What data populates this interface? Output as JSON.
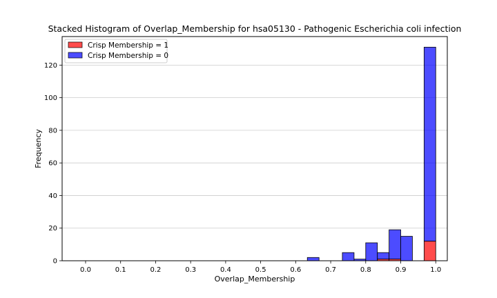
{
  "chart_data": {
    "type": "bar",
    "title": "Stacked Histogram of Overlap_Membership for hsa05130 - Pathogenic Escherichia coli infection",
    "xlabel": "Overlap_Membership",
    "ylabel": "Frequency",
    "xlim": [
      -0.067,
      1.033
    ],
    "ylim": [
      0,
      137.5
    ],
    "x_ticks": [
      0.0,
      0.1,
      0.2,
      0.3,
      0.4,
      0.5,
      0.6,
      0.7,
      0.8,
      0.9,
      1.0
    ],
    "x_tick_labels": [
      "0.0",
      "0.1",
      "0.2",
      "0.3",
      "0.4",
      "0.5",
      "0.6",
      "0.7",
      "0.8",
      "0.9",
      "1.0"
    ],
    "y_ticks": [
      0,
      20,
      40,
      60,
      80,
      100,
      120
    ],
    "y_tick_labels": [
      "0",
      "20",
      "40",
      "60",
      "80",
      "100",
      "120"
    ],
    "grid": "y",
    "legend_position": "top-left",
    "bin_edges": [
      -0.0333,
      0.0,
      0.0333,
      0.0667,
      0.1,
      0.1333,
      0.1667,
      0.2,
      0.2333,
      0.2667,
      0.3,
      0.3333,
      0.3667,
      0.4,
      0.4333,
      0.4667,
      0.5,
      0.5333,
      0.5667,
      0.6,
      0.6333,
      0.6667,
      0.7,
      0.7333,
      0.7667,
      0.8,
      0.8333,
      0.8667,
      0.9,
      0.9333,
      0.9667,
      1.0
    ],
    "series": [
      {
        "name": "Crisp Membership = 1",
        "color": "#ff0000",
        "values": [
          0,
          0,
          0,
          0,
          0,
          0,
          0,
          0,
          0,
          0,
          0,
          0,
          0,
          0,
          0,
          0,
          0,
          0,
          0,
          0,
          0,
          0,
          0,
          0,
          0,
          0,
          1,
          1,
          0,
          0,
          12
        ]
      },
      {
        "name": "Crisp Membership = 0",
        "color": "#0000ff",
        "values": [
          0,
          0,
          0,
          0,
          0,
          0,
          0,
          0,
          0,
          0,
          0,
          0,
          0,
          0,
          0,
          0,
          0,
          0,
          0,
          0,
          2,
          0,
          0,
          5,
          1,
          11,
          4,
          18,
          15,
          0,
          119
        ]
      }
    ]
  }
}
